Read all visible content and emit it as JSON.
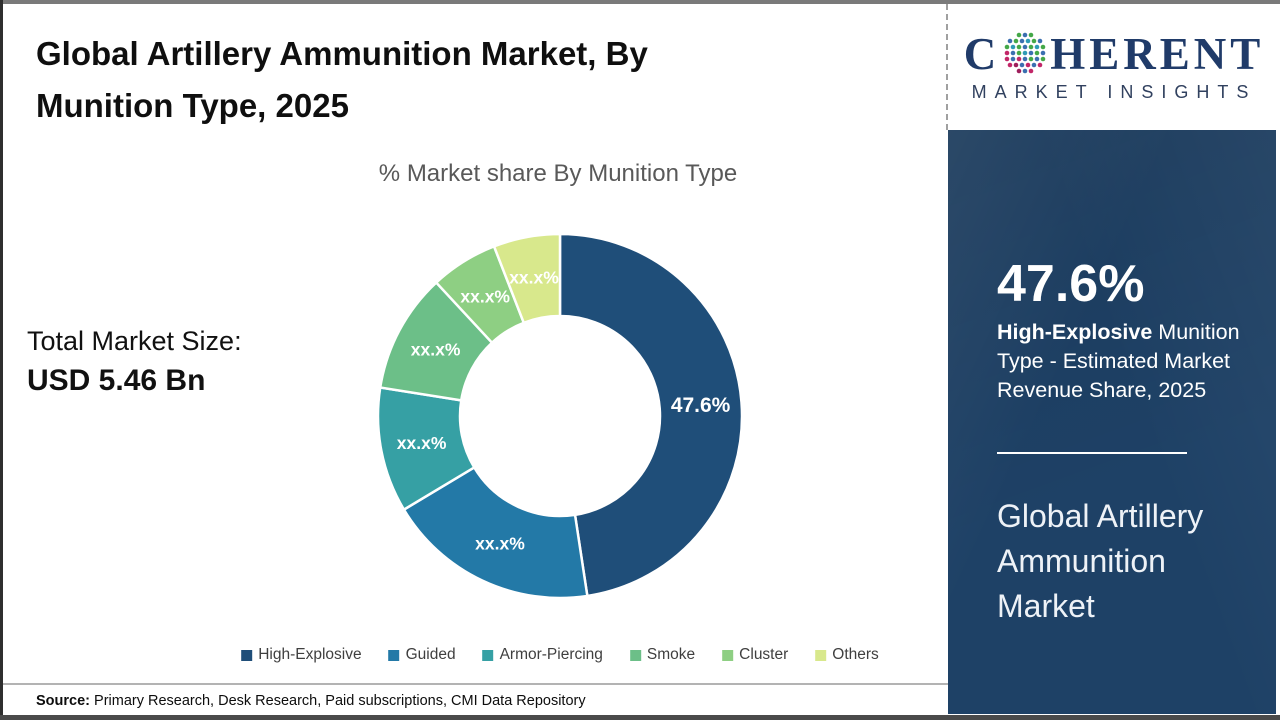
{
  "page": {
    "title_line1": "Global Artillery Ammunition Market, By",
    "title_line2": "Munition Type, 2025"
  },
  "total_market": {
    "label": "Total Market Size:",
    "value": "USD 5.46 Bn"
  },
  "source": {
    "label": "Source:",
    "text": " Primary Research, Desk Research, Paid subscriptions, CMI Data Repository"
  },
  "logo": {
    "brand_prefix": "C",
    "brand_suffix": "HERENT",
    "tagline": "MARKET INSIGHTS",
    "globe_icon": "dot-globe-icon"
  },
  "sidebar": {
    "stat_value": "47.6%",
    "stat_bold": "High-Explosive",
    "stat_rest": " Munition Type - Estimated Market Revenue Share, 2025",
    "report_title": "Global Artillery Ammunition Market",
    "background_color": "#1e4166"
  },
  "chart_data": {
    "type": "donut",
    "title": "% Market share By Munition Type",
    "legend_position": "bottom",
    "labels_on_slices": true,
    "slices": [
      {
        "label": "High-Explosive",
        "display_value": "47.6%",
        "value_pct": 47.6,
        "color": "#1f4e79"
      },
      {
        "label": "Guided",
        "display_value": "xx.x%",
        "value_pct": 18.8,
        "color": "#2379a7"
      },
      {
        "label": "Armor-Piercing",
        "display_value": "xx.x%",
        "value_pct": 11.1,
        "color": "#36a0a4"
      },
      {
        "label": "Smoke",
        "display_value": "xx.x%",
        "value_pct": 10.6,
        "color": "#6cbf88"
      },
      {
        "label": "Cluster",
        "display_value": "xx.x%",
        "value_pct": 6.0,
        "color": "#8ecf83"
      },
      {
        "label": "Others",
        "display_value": "xx.x%",
        "value_pct": 5.9,
        "color": "#d8e88c"
      }
    ]
  }
}
